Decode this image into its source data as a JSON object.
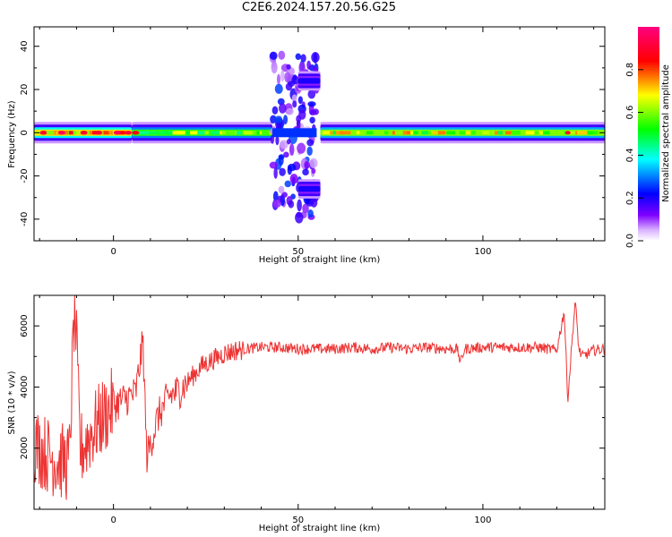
{
  "title": "C2E6.2024.157.20.56.G25",
  "chart_data": [
    {
      "type": "heatmap",
      "xlabel": "Height of straight line (km)",
      "ylabel": "Frequency (Hz)",
      "xlim": [
        -21.5,
        133
      ],
      "ylim": [
        -50,
        49
      ],
      "xticks": [
        0,
        50,
        100
      ],
      "yticks": [
        -40,
        -20,
        0,
        20,
        40
      ],
      "colorbar": {
        "label": "Normalized spectral amplitude",
        "range": [
          0,
          1
        ],
        "ticks": [
          0.0,
          0.2,
          0.4,
          0.6,
          0.8
        ],
        "tick_labels": [
          "0.0",
          "0.2",
          "0.4",
          "0.6",
          "0.8"
        ],
        "colormap": [
          "#ffffff",
          "#d9b3ff",
          "#7f00ff",
          "#0000ff",
          "#00ffff",
          "#00ff00",
          "#ffff00",
          "#ff0000",
          "#ff0080"
        ]
      },
      "features": [
        {
          "x_range": [
            -21.5,
            5
          ],
          "frequency": 0,
          "amplitude": 0.7
        },
        {
          "x_range": [
            5,
            43
          ],
          "frequency": 0,
          "amplitude": 0.55
        },
        {
          "x_range": [
            43,
            55
          ],
          "frequency": 0,
          "amplitude": 0.3,
          "scatter_range": [
            -40,
            38
          ]
        },
        {
          "x_range": [
            50,
            56
          ],
          "frequency": 24,
          "amplitude": 0.2
        },
        {
          "x_range": [
            50,
            56
          ],
          "frequency": -26,
          "amplitude": 0.2
        },
        {
          "x_range": [
            56,
            133
          ],
          "frequency": 0,
          "amplitude": 0.6
        }
      ]
    },
    {
      "type": "line",
      "xlabel": "Height of straight line (km)",
      "ylabel": "SNR (10 * v/v)",
      "xlim": [
        -21.5,
        133
      ],
      "ylim": [
        0,
        7000
      ],
      "xticks": [
        0,
        50,
        100
      ],
      "yticks": [
        2000,
        4000,
        6000
      ],
      "color": "#ee3333",
      "series": [
        {
          "x": [
            -21,
            -18,
            -15,
            -12,
            -10.5,
            -9,
            -6,
            -3,
            0,
            3,
            6,
            8,
            9,
            12,
            15,
            18,
            21,
            24,
            27,
            30,
            33,
            36,
            40,
            45,
            50,
            55,
            60,
            65,
            70,
            75,
            80,
            85,
            90,
            93,
            94,
            95,
            100,
            105,
            110,
            115,
            120,
            122,
            123,
            124,
            125,
            126,
            127,
            130,
            133
          ],
          "y": [
            2100,
            1800,
            1600,
            1500,
            6900,
            1900,
            2500,
            3000,
            3400,
            3600,
            3800,
            5500,
            1700,
            3000,
            3700,
            3900,
            4300,
            4700,
            4900,
            5100,
            5200,
            5250,
            5300,
            5300,
            5250,
            5250,
            5250,
            5300,
            5250,
            5300,
            5250,
            5300,
            5250,
            5250,
            4800,
            5250,
            5300,
            5300,
            5300,
            5300,
            5200,
            6500,
            3600,
            5300,
            6800,
            5200,
            5000,
            5200,
            5250
          ]
        }
      ]
    }
  ]
}
